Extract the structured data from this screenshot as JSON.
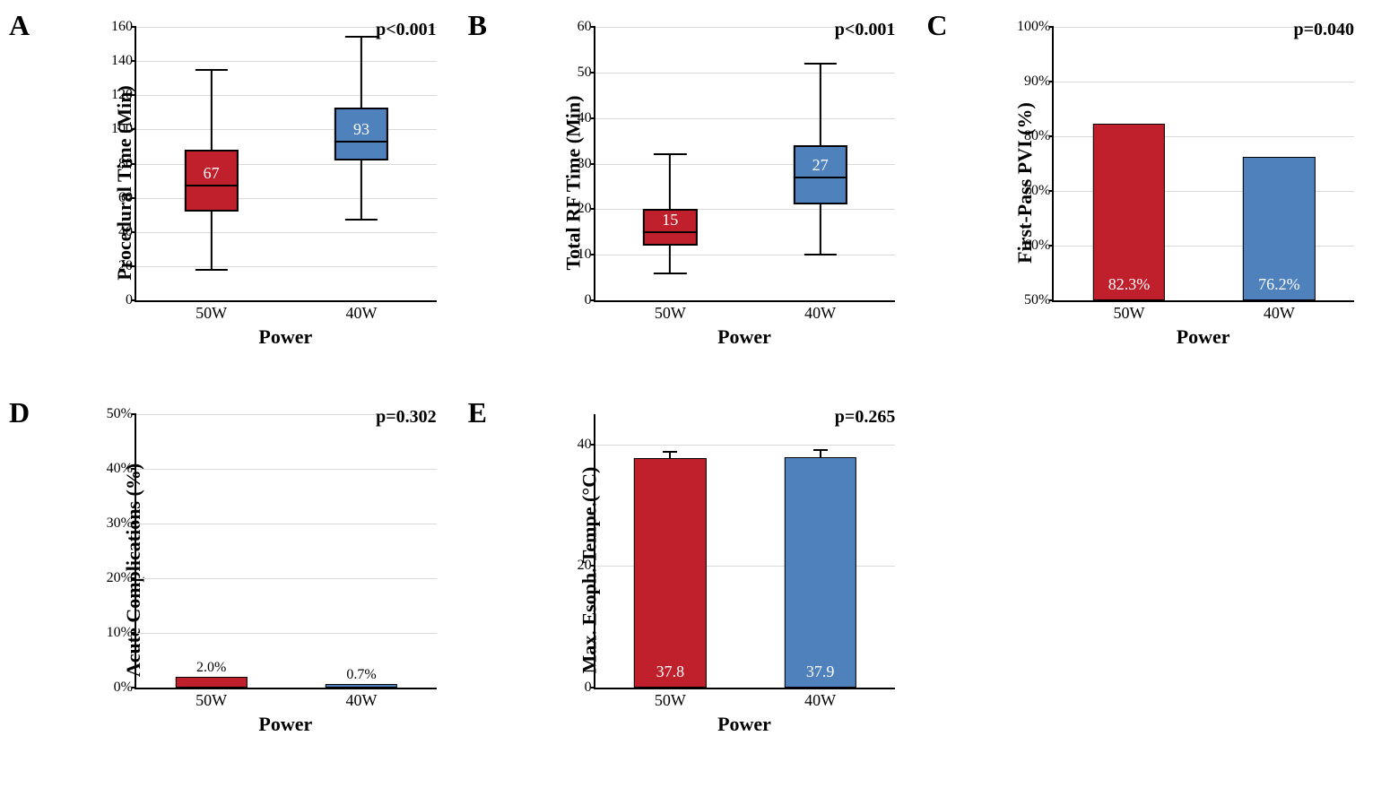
{
  "colors": {
    "red": "#c0202c",
    "blue": "#4f81bd",
    "grid": "#d9d9d9",
    "bg": "#ffffff"
  },
  "panels": {
    "A": {
      "letter": "A",
      "type": "boxplot",
      "ylabel": "Procedural Time (Min)",
      "xlabel": "Power",
      "pvalue": "p<0.001",
      "ylim": [
        0,
        160
      ],
      "ytick_step": 20,
      "categories": [
        "50W",
        "40W"
      ],
      "boxes": [
        {
          "color": "#c0202c",
          "min": 18,
          "q1": 52,
          "median": 67,
          "q3": 88,
          "max": 135,
          "label": "67"
        },
        {
          "color": "#4f81bd",
          "min": 47,
          "q1": 82,
          "median": 93,
          "q3": 113,
          "max": 154,
          "label": "93"
        }
      ]
    },
    "B": {
      "letter": "B",
      "type": "boxplot",
      "ylabel": "Total RF Time (Min)",
      "xlabel": "Power",
      "pvalue": "p<0.001",
      "ylim": [
        0,
        60
      ],
      "ytick_step": 10,
      "categories": [
        "50W",
        "40W"
      ],
      "boxes": [
        {
          "color": "#c0202c",
          "min": 6,
          "q1": 12,
          "median": 15,
          "q3": 20,
          "max": 32,
          "label": "15"
        },
        {
          "color": "#4f81bd",
          "min": 10,
          "q1": 21,
          "median": 27,
          "q3": 34,
          "max": 52,
          "label": "27"
        }
      ]
    },
    "C": {
      "letter": "C",
      "type": "bar",
      "ylabel": "First-Pass PVI (%)",
      "xlabel": "Power",
      "pvalue": "p=0.040",
      "ylim": [
        50,
        100
      ],
      "ytick_step": 10,
      "ysuffix": "%",
      "categories": [
        "50W",
        "40W"
      ],
      "bars": [
        {
          "color": "#c0202c",
          "value": 82.3,
          "label": "82.3%",
          "label_pos": "in"
        },
        {
          "color": "#4f81bd",
          "value": 76.2,
          "label": "76.2%",
          "label_pos": "in"
        }
      ]
    },
    "D": {
      "letter": "D",
      "type": "bar",
      "ylabel": "Acute Complications (%)",
      "xlabel": "Power",
      "pvalue": "p=0.302",
      "ylim": [
        0,
        50
      ],
      "ytick_step": 10,
      "ysuffix": "%",
      "categories": [
        "50W",
        "40W"
      ],
      "bars": [
        {
          "color": "#c0202c",
          "value": 2.0,
          "label": "2.0%",
          "label_pos": "top"
        },
        {
          "color": "#4f81bd",
          "value": 0.7,
          "label": "0.7%",
          "label_pos": "top"
        }
      ]
    },
    "E": {
      "letter": "E",
      "type": "bar",
      "ylabel": "Max. Esoph. Tempe.(°C)",
      "xlabel": "Power",
      "pvalue": "p=0.265",
      "ylim": [
        0,
        45
      ],
      "ytick_step": 20,
      "categories": [
        "50W",
        "40W"
      ],
      "bars": [
        {
          "color": "#c0202c",
          "value": 37.8,
          "label": "37.8",
          "label_pos": "in",
          "err": 1.0
        },
        {
          "color": "#4f81bd",
          "value": 37.9,
          "label": "37.9",
          "label_pos": "in",
          "err": 1.2
        }
      ]
    }
  },
  "grid_positions": [
    "A",
    "B",
    "C",
    "D",
    "E"
  ]
}
